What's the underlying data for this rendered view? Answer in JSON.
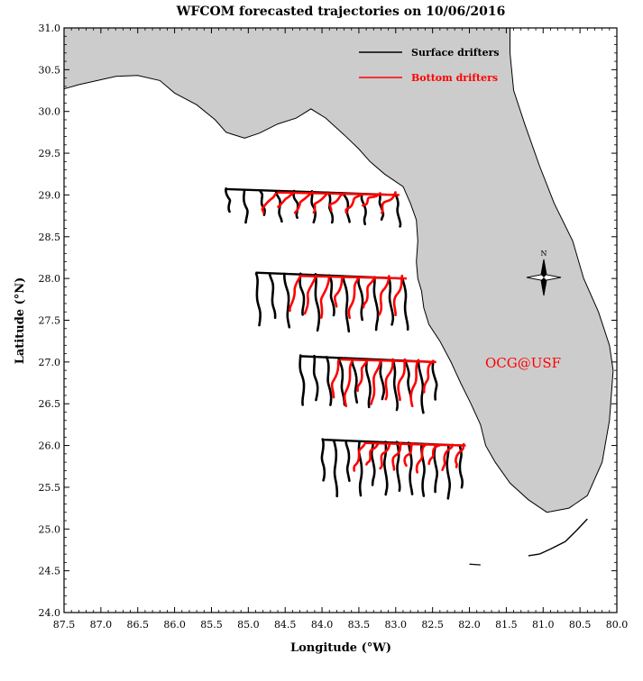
{
  "chart_data": {
    "type": "line",
    "title": "WFCOM forecasted trajectories on 10/06/2016",
    "xlabel": "Longitude (°W)",
    "ylabel": "Latitude (°N)",
    "xlim": [
      87.5,
      80.0
    ],
    "ylim": [
      24.0,
      31.0
    ],
    "x_ticks": [
      "87.5",
      "87.0",
      "86.5",
      "86.0",
      "85.5",
      "85.0",
      "84.5",
      "84.0",
      "83.5",
      "83.0",
      "82.5",
      "82.0",
      "81.5",
      "81.0",
      "80.5",
      "80.0"
    ],
    "y_ticks": [
      "24.0",
      "24.5",
      "25.0",
      "25.5",
      "26.0",
      "26.5",
      "27.0",
      "27.5",
      "28.0",
      "28.5",
      "29.0",
      "29.5",
      "30.0",
      "30.5",
      "31.0"
    ],
    "grid": false,
    "legend_position": "top-right",
    "series": [
      {
        "name": "Surface drifters",
        "color": "#000000"
      },
      {
        "name": "Bottom drifters",
        "color": "#ff0000"
      }
    ],
    "release_rows": [
      {
        "lat": 29.0,
        "lon_start": 85.3,
        "lon_end": 83.0,
        "spacing": 0.23,
        "surface_drift": {
          "south": 0.35,
          "east": 0.05
        },
        "bottom_drift": {
          "south": 0.22,
          "east": -0.2
        }
      },
      {
        "lat": 28.0,
        "lon_start": 84.9,
        "lon_end": 82.9,
        "spacing": 0.2,
        "surface_drift": {
          "south": 0.6,
          "east": 0.05
        },
        "bottom_drift": {
          "south": 0.45,
          "east": -0.12
        }
      },
      {
        "lat": 27.0,
        "lon_start": 84.3,
        "lon_end": 82.5,
        "spacing": 0.18,
        "surface_drift": {
          "south": 0.55,
          "east": 0.05
        },
        "bottom_drift": {
          "south": 0.5,
          "east": -0.1
        }
      },
      {
        "lat": 26.0,
        "lon_start": 84.0,
        "lon_end": 82.1,
        "spacing": 0.17,
        "surface_drift": {
          "south": 0.6,
          "east": 0.02
        },
        "bottom_drift": {
          "south": 0.3,
          "east": -0.12
        }
      }
    ],
    "annotations": [
      {
        "text": "OCG@USF",
        "lon": 81.1,
        "lat": 27.0,
        "color": "#ff0000"
      },
      {
        "text": "N",
        "lon": 81.0,
        "lat": 28.3,
        "type": "compass"
      }
    ]
  }
}
